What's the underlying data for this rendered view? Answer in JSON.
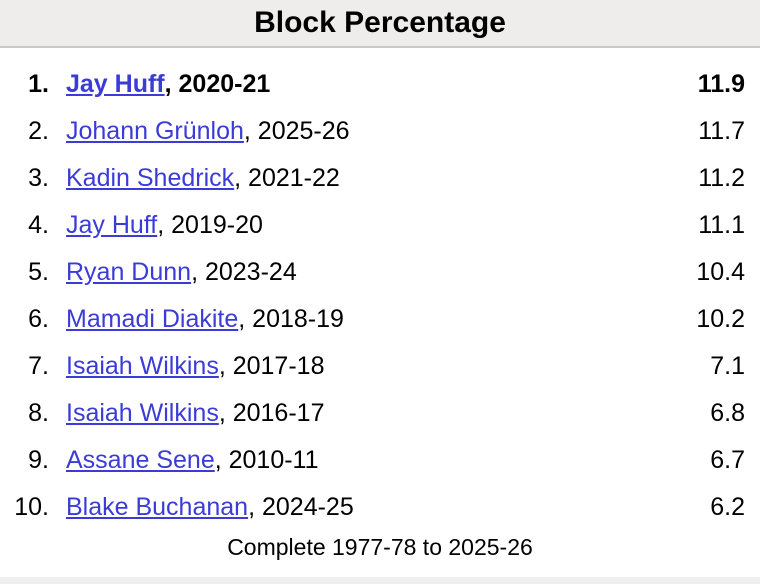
{
  "header": {
    "title": "Block Percentage"
  },
  "colors": {
    "header_bg": "#eeedec",
    "divider": "#c9c9c9",
    "link": "#3b3bd8",
    "strip": "#efefef",
    "text": "#000000"
  },
  "leaderboard": {
    "rows": [
      {
        "rank": "1.",
        "player": "Jay Huff",
        "season": ", 2020-21",
        "value": "11.9"
      },
      {
        "rank": "2.",
        "player": "Johann Grünloh",
        "season": ", 2025-26",
        "value": "11.7"
      },
      {
        "rank": "3.",
        "player": "Kadin Shedrick",
        "season": ", 2021-22",
        "value": "11.2"
      },
      {
        "rank": "4.",
        "player": "Jay Huff",
        "season": ", 2019-20",
        "value": "11.1"
      },
      {
        "rank": "5.",
        "player": "Ryan Dunn",
        "season": ", 2023-24",
        "value": "10.4"
      },
      {
        "rank": "6.",
        "player": "Mamadi Diakite",
        "season": ", 2018-19",
        "value": "10.2"
      },
      {
        "rank": "7.",
        "player": "Isaiah Wilkins",
        "season": ", 2017-18",
        "value": "7.1"
      },
      {
        "rank": "8.",
        "player": "Isaiah Wilkins",
        "season": ", 2016-17",
        "value": "6.8"
      },
      {
        "rank": "9.",
        "player": "Assane Sene",
        "season": ", 2010-11",
        "value": "6.7"
      },
      {
        "rank": "10.",
        "player": "Blake Buchanan",
        "season": ", 2024-25",
        "value": "6.2"
      }
    ],
    "footer": "Complete 1977-78 to 2025-26"
  }
}
